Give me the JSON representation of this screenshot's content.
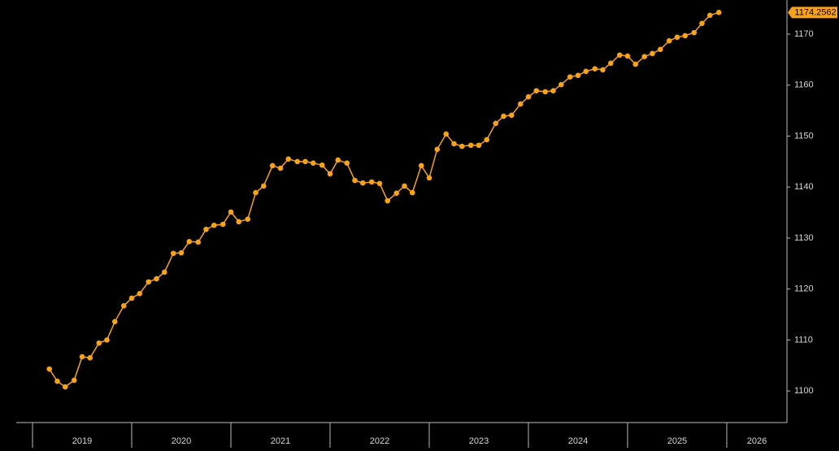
{
  "chart_data": {
    "type": "line",
    "x": [
      2019.17,
      2019.25,
      2019.33,
      2019.42,
      2019.5,
      2019.58,
      2019.67,
      2019.75,
      2019.83,
      2019.92,
      2020.0,
      2020.08,
      2020.17,
      2020.25,
      2020.33,
      2020.42,
      2020.5,
      2020.58,
      2020.67,
      2020.75,
      2020.83,
      2020.92,
      2021.0,
      2021.08,
      2021.17,
      2021.25,
      2021.33,
      2021.42,
      2021.5,
      2021.58,
      2021.67,
      2021.75,
      2021.83,
      2021.92,
      2022.0,
      2022.08,
      2022.17,
      2022.25,
      2022.33,
      2022.42,
      2022.5,
      2022.58,
      2022.67,
      2022.75,
      2022.83,
      2022.92,
      2023.0,
      2023.08,
      2023.17,
      2023.25,
      2023.33,
      2023.42,
      2023.5,
      2023.58,
      2023.67,
      2023.75,
      2023.83,
      2023.92,
      2024.0,
      2024.08,
      2024.17,
      2024.25,
      2024.33,
      2024.42,
      2024.5,
      2024.58,
      2024.67,
      2024.75,
      2024.83,
      2024.92,
      2025.0,
      2025.08,
      2025.17,
      2025.25,
      2025.33,
      2025.42,
      2025.5,
      2025.58,
      2025.67,
      2025.75,
      2025.83,
      2025.92
    ],
    "series": [
      {
        "color": "#f7a21b",
        "values": [
          1104.3,
          1101.9,
          1100.8,
          1102.1,
          1106.7,
          1106.5,
          1109.4,
          1110.0,
          1113.6,
          1116.7,
          1118.2,
          1119.1,
          1121.4,
          1122.0,
          1123.3,
          1127.0,
          1127.1,
          1129.3,
          1129.2,
          1131.7,
          1132.5,
          1132.7,
          1135.1,
          1133.2,
          1133.7,
          1138.9,
          1140.2,
          1144.2,
          1143.7,
          1145.5,
          1145.0,
          1145.0,
          1144.7,
          1144.3,
          1142.6,
          1145.3,
          1144.7,
          1141.3,
          1140.8,
          1141.0,
          1140.7,
          1137.3,
          1138.8,
          1140.2,
          1138.9,
          1144.2,
          1141.8,
          1147.4,
          1150.4,
          1148.5,
          1148.0,
          1148.2,
          1148.2,
          1149.3,
          1152.5,
          1153.9,
          1154.1,
          1156.3,
          1157.7,
          1158.9,
          1158.7,
          1158.9,
          1160.1,
          1161.6,
          1161.9,
          1162.7,
          1163.2,
          1163.0,
          1164.3,
          1165.9,
          1165.7,
          1164.1,
          1165.6,
          1166.2,
          1167.0,
          1168.7,
          1169.4,
          1169.7,
          1170.3,
          1172.1,
          1173.7,
          1174.2562
        ]
      }
    ],
    "xlim": [
      2018.836,
      2026.607
    ],
    "xticks": [
      2019,
      2020,
      2021,
      2022,
      2023,
      2024,
      2025,
      2026
    ],
    "ylim": [
      1093.8,
      1176.7
    ],
    "yticks": [
      1100,
      1110,
      1120,
      1130,
      1140,
      1150,
      1160,
      1170
    ]
  }
}
